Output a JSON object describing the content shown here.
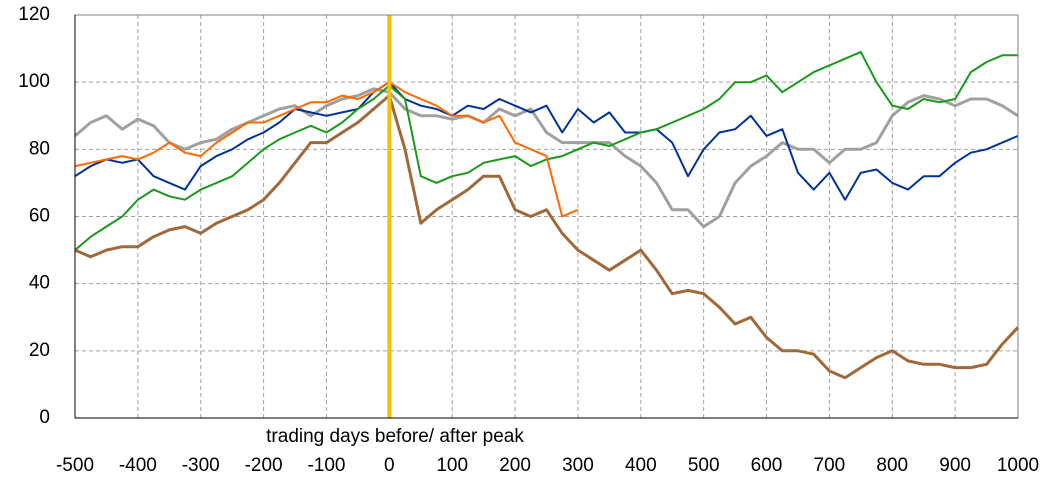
{
  "chart_data": {
    "type": "line",
    "x_label": "trading days before/ after peak",
    "x": [
      -500,
      -475,
      -450,
      -425,
      -400,
      -375,
      -350,
      -325,
      -300,
      -275,
      -250,
      -225,
      -200,
      -175,
      -150,
      -125,
      -100,
      -75,
      -50,
      -25,
      0,
      25,
      50,
      75,
      100,
      125,
      150,
      175,
      200,
      225,
      250,
      275,
      300,
      325,
      350,
      375,
      400,
      425,
      450,
      475,
      500,
      525,
      550,
      575,
      600,
      625,
      650,
      675,
      700,
      725,
      750,
      775,
      800,
      825,
      850,
      875,
      900,
      925,
      950,
      975,
      1000
    ],
    "series": [
      {
        "color": "#a0a0a0",
        "line_width": 3,
        "values": [
          84,
          88,
          90,
          86,
          89,
          87,
          82,
          80,
          82,
          83,
          86,
          88,
          90,
          92,
          93,
          90,
          93,
          95,
          96,
          98,
          97,
          92,
          90,
          90,
          89,
          90,
          88,
          92,
          90,
          92,
          85,
          82,
          82,
          82,
          82,
          78,
          75,
          70,
          62,
          62,
          57,
          60,
          70,
          75,
          78,
          82,
          80,
          80,
          76,
          80,
          80,
          82,
          90,
          94,
          96,
          95,
          93,
          95,
          95,
          93,
          90
        ]
      },
      {
        "color": "#003399",
        "line_width": 2,
        "values": [
          72,
          75,
          77,
          76,
          77,
          72,
          70,
          68,
          75,
          78,
          80,
          83,
          85,
          88,
          92,
          91,
          90,
          91,
          92,
          97,
          100,
          95,
          93,
          92,
          90,
          93,
          92,
          95,
          93,
          91,
          93,
          85,
          92,
          88,
          91,
          85,
          85,
          86,
          82,
          72,
          80,
          85,
          86,
          90,
          84,
          86,
          73,
          68,
          73,
          65,
          73,
          74,
          70,
          68,
          72,
          72,
          76,
          79,
          80,
          82,
          84
        ]
      },
      {
        "color": "#1a9a1a",
        "line_width": 2,
        "values": [
          50,
          54,
          57,
          60,
          65,
          68,
          66,
          65,
          68,
          70,
          72,
          76,
          80,
          83,
          85,
          87,
          85,
          88,
          92,
          95,
          99,
          95,
          72,
          70,
          72,
          73,
          76,
          77,
          78,
          75,
          77,
          78,
          80,
          82,
          81,
          83,
          85,
          86,
          88,
          90,
          92,
          95,
          100,
          100,
          102,
          97,
          100,
          103,
          105,
          107,
          109,
          100,
          93,
          92,
          95,
          94,
          95,
          103,
          106,
          108,
          108
        ]
      },
      {
        "color": "#ff6a00",
        "line_width": 2,
        "values": [
          75,
          76,
          77,
          78,
          77,
          79,
          82,
          79,
          78,
          82,
          85,
          88,
          88,
          90,
          92,
          94,
          94,
          96,
          95,
          97,
          100,
          97,
          95,
          93,
          90,
          90,
          88,
          90,
          82,
          80,
          78,
          60,
          62,
          null,
          null,
          null,
          null,
          null,
          null,
          null,
          null,
          null,
          null,
          null,
          null,
          null,
          null,
          null,
          null,
          null,
          null,
          null,
          null,
          null,
          null,
          null,
          null,
          null,
          null,
          null,
          null
        ]
      },
      {
        "color": "#a0693a",
        "line_width": 3,
        "values": [
          50,
          48,
          50,
          51,
          51,
          54,
          56,
          57,
          55,
          58,
          60,
          62,
          65,
          70,
          76,
          82,
          82,
          85,
          88,
          92,
          96,
          80,
          58,
          62,
          65,
          68,
          72,
          72,
          62,
          60,
          62,
          55,
          50,
          47,
          44,
          47,
          50,
          44,
          37,
          38,
          37,
          33,
          28,
          30,
          24,
          20,
          20,
          19,
          14,
          12,
          15,
          18,
          20,
          17,
          16,
          16,
          15,
          15,
          16,
          22,
          27
        ]
      }
    ],
    "vline": {
      "x": 0,
      "color": "#f5c000"
    },
    "xlim": [
      -500,
      1000
    ],
    "xticks": [
      -500,
      -400,
      -300,
      -200,
      -100,
      0,
      100,
      200,
      300,
      400,
      500,
      600,
      700,
      800,
      900,
      1000
    ],
    "ylim": [
      0,
      120
    ],
    "yticks": [
      0,
      20,
      40,
      60,
      80,
      100,
      120
    ],
    "grid": true
  }
}
